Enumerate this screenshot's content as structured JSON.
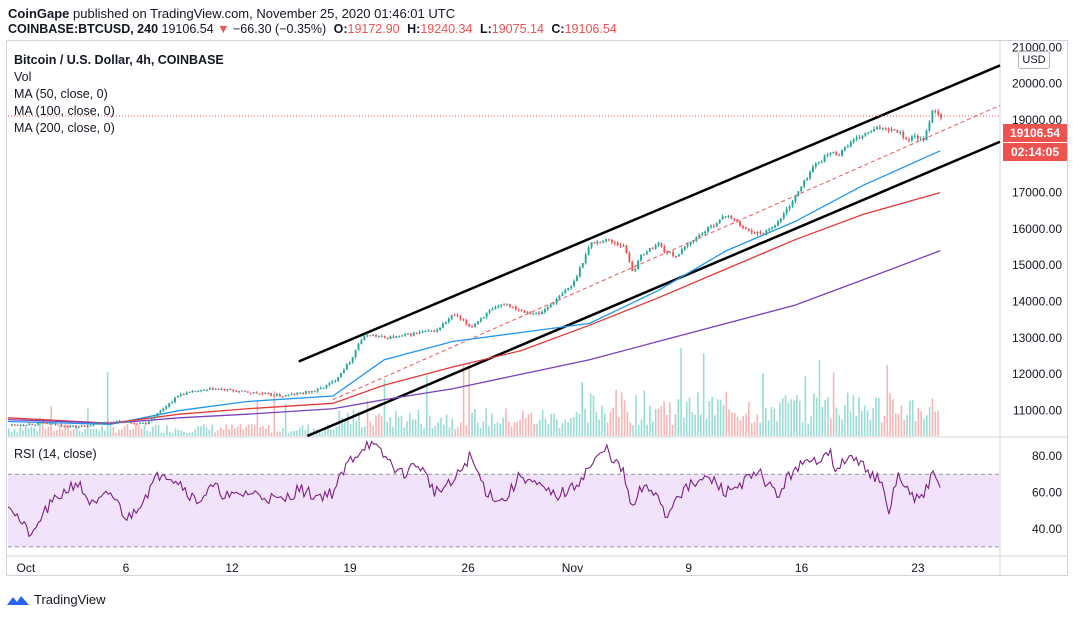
{
  "header": {
    "publisher": "CoinGape",
    "published_text": "published on TradingView.com, November 25, 2020 01:46:01 UTC",
    "symbol": "COINBASE:BTCUSD, 240",
    "last": "19106.54",
    "change_arrow": "▼",
    "change": "−66.30 (−0.35%)",
    "o_label": "O:",
    "o": "19172.90",
    "h_label": "H:",
    "h": "19240.34",
    "l_label": "L:",
    "l": "19075.14",
    "c_label": "C:",
    "c": "19106.54"
  },
  "legend": {
    "title": "Bitcoin / U.S. Dollar, 4h, COINBASE",
    "vol": "Vol",
    "ma50": "MA (50, close, 0)",
    "ma100": "MA (100, close, 0)",
    "ma200": "MA (200, close, 0)"
  },
  "rsi_label": "RSI (14, close)",
  "currency_button": "USD",
  "price_tags": {
    "current_price": "19106.54",
    "countdown": "02:14:05"
  },
  "footer": {
    "brand": "TradingView"
  },
  "colors": {
    "up": "#26a69a",
    "down": "#ef5350",
    "ma50": "#2196f3",
    "ma100": "#e53935",
    "ma200": "#7b3fbf",
    "rsi": "#7e1f86",
    "rsi_band": "#f1e3fb",
    "price_tag": "#ef5350",
    "countdown_tag": "#ef5350"
  },
  "chart_data": [
    {
      "type": "line",
      "title": "Bitcoin / U.S. Dollar, 4h, COINBASE",
      "x_ticks": [
        "Oct",
        "6",
        "12",
        "19",
        "26",
        "Nov",
        "9",
        "16",
        "23"
      ],
      "y_ticks": [
        "21000.00",
        "20000.00",
        "19000.00",
        "18000.00",
        "17000.00",
        "16000.00",
        "15000.00",
        "14000.00",
        "13000.00",
        "12000.00",
        "11000.00"
      ],
      "ylim": [
        10300,
        21200
      ],
      "xlim": [
        0,
        58
      ],
      "series": [
        {
          "name": "Price",
          "x": [
            0,
            2,
            4,
            6,
            8,
            10,
            12,
            14,
            16,
            18,
            19,
            20,
            20.5,
            21,
            22,
            23,
            24,
            25,
            26,
            27,
            28,
            29,
            30,
            31,
            32,
            33,
            34,
            35,
            36,
            36.5,
            37,
            38,
            38.3,
            39,
            40,
            41,
            42,
            43,
            44,
            45,
            46,
            47,
            48,
            48.5,
            49,
            50,
            51,
            52,
            52.5,
            53,
            53.5,
            54,
            54.5
          ],
          "values": [
            10600,
            10650,
            10550,
            10700,
            10650,
            11450,
            11600,
            11500,
            11400,
            11550,
            11800,
            12400,
            12900,
            13100,
            13000,
            13050,
            13150,
            13200,
            13650,
            13300,
            13700,
            13950,
            13750,
            13650,
            14050,
            14500,
            15600,
            15700,
            15500,
            14800,
            15300,
            15600,
            15400,
            15250,
            15700,
            16050,
            16400,
            16000,
            15850,
            16200,
            16900,
            17700,
            18100,
            18050,
            18300,
            18600,
            18800,
            18700,
            18450,
            18550,
            18400,
            19300,
            19106
          ]
        },
        {
          "name": "MA (50, close, 0)",
          "x": [
            0,
            6,
            10,
            14,
            19,
            22,
            26,
            30,
            34,
            38,
            42,
            46,
            50,
            54.5
          ],
          "values": [
            10700,
            10620,
            11000,
            11250,
            11400,
            12400,
            12900,
            13150,
            13400,
            14300,
            15400,
            16200,
            17200,
            18150
          ]
        },
        {
          "name": "MA (100, close, 0)",
          "x": [
            0,
            6,
            10,
            14,
            19,
            22,
            26,
            30,
            34,
            38,
            42,
            46,
            50,
            54.5
          ],
          "values": [
            10800,
            10650,
            10900,
            11050,
            11200,
            11700,
            12200,
            12650,
            13350,
            14100,
            14900,
            15700,
            16400,
            17000
          ]
        },
        {
          "name": "MA (200, close, 0)",
          "x": [
            0,
            6,
            10,
            14,
            19,
            22,
            26,
            30,
            34,
            38,
            42,
            46,
            50,
            54.5
          ],
          "values": [
            10750,
            10650,
            10800,
            10900,
            11050,
            11300,
            11600,
            12000,
            12400,
            12900,
            13400,
            13900,
            14600,
            15400
          ]
        }
      ],
      "channel_upper": {
        "x": [
          17,
          58
        ],
        "y": [
          12350,
          20500
        ]
      },
      "channel_lower": {
        "x": [
          17.5,
          58
        ],
        "y": [
          10300,
          18400
        ]
      },
      "channel_mid": {
        "x": [
          19,
          58
        ],
        "y": [
          11300,
          19400
        ]
      },
      "volume_ylim": [
        0,
        3000
      ]
    },
    {
      "type": "line",
      "title": "RSI (14, close)",
      "y_ticks": [
        "80.00",
        "60.00",
        "40.00"
      ],
      "ylim": [
        25,
        90
      ],
      "bands": [
        30,
        70
      ],
      "xlim": [
        0,
        58
      ],
      "series": [
        {
          "name": "RSI (14, close)",
          "x": [
            0,
            1,
            1.5,
            2,
            3,
            4,
            5,
            6,
            7,
            8,
            9,
            10,
            11,
            12,
            13,
            14,
            15,
            16,
            17,
            18,
            19,
            20,
            20.5,
            21,
            22,
            23,
            24,
            25,
            26,
            27,
            28,
            29,
            30,
            31,
            32,
            33,
            34,
            35,
            36,
            36.5,
            37,
            38,
            38.5,
            39,
            40,
            41,
            42,
            43,
            44,
            45,
            46,
            47,
            48,
            48.5,
            49,
            50,
            51,
            51.5,
            52,
            53,
            53.5,
            54,
            54.5
          ],
          "values": [
            55,
            40,
            36,
            48,
            58,
            66,
            52,
            60,
            45,
            58,
            72,
            66,
            55,
            63,
            57,
            60,
            58,
            55,
            62,
            58,
            60,
            78,
            82,
            88,
            80,
            70,
            76,
            60,
            65,
            80,
            60,
            55,
            70,
            63,
            58,
            62,
            74,
            84,
            70,
            50,
            62,
            60,
            45,
            58,
            64,
            68,
            60,
            66,
            70,
            58,
            74,
            76,
            84,
            70,
            80,
            75,
            66,
            48,
            70,
            55,
            58,
            70,
            62
          ]
        }
      ]
    }
  ]
}
